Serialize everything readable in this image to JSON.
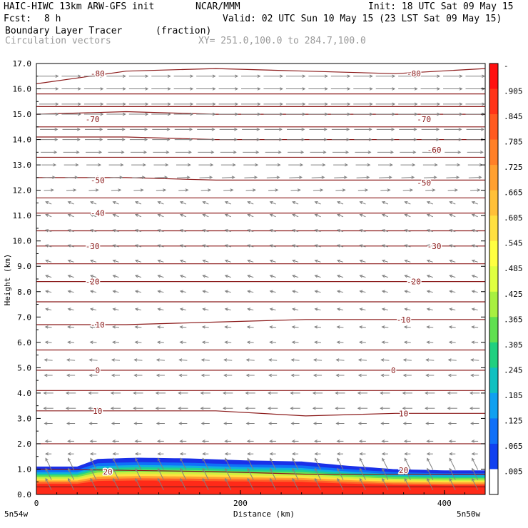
{
  "header": {
    "model": "HAIC-HIWC 13km ARW-GFS init",
    "org": "NCAR/MMM",
    "init": "Init: 18 UTC Sat 09 May 15",
    "fcst_label": "Fcst:",
    "fcst_value": "8 h",
    "valid": "Valid: 02 UTC Sun 10 May 15 (23 LST Sat 09 May 15)",
    "field_name": "Boundary Layer Tracer",
    "field_units": "(fraction)",
    "overlay_name": "Circulation vectors",
    "xsect": "XY= 251.0,100.0 to 284.7,100.0"
  },
  "chart_data": {
    "type": "heatmap",
    "xlabel": "Distance (km)",
    "ylabel": "Height (km)",
    "xlim": [
      0,
      440
    ],
    "ylim": [
      0,
      17
    ],
    "x_ticks": [
      "0",
      "200",
      "400"
    ],
    "x_tick_values": [
      0,
      200,
      400
    ],
    "x_end_labels": [
      "5n54w",
      "5n50w"
    ],
    "y_ticks": [
      "0.0",
      "1.0",
      "2.0",
      "3.0",
      "4.0",
      "5.0",
      "6.0",
      "7.0",
      "8.0",
      "9.0",
      "10.0",
      "11.0",
      "12.0",
      "13.0",
      "14.0",
      "15.0",
      "16.0",
      "17.0"
    ],
    "colorbar": {
      "labels": [
        "-",
        ".905",
        ".845",
        ".785",
        ".725",
        ".665",
        ".605",
        ".545",
        ".485",
        ".425",
        ".365",
        ".305",
        ".245",
        ".185",
        ".125",
        ".065",
        ".005"
      ],
      "colors": [
        "#ff1010",
        "#ff3418",
        "#ff5a20",
        "#ff8028",
        "#ffa030",
        "#ffc038",
        "#ffe040",
        "#ffff40",
        "#e0ff40",
        "#a8f040",
        "#60e050",
        "#20d080",
        "#10c0c0",
        "#10a0f0",
        "#1070f8",
        "#1040f0",
        "#ffffff"
      ]
    },
    "tracer_top": {
      "x": [
        0,
        40,
        60,
        100,
        150,
        200,
        260,
        300,
        350,
        400,
        440
      ],
      "height_km": [
        1.1,
        1.1,
        1.4,
        1.45,
        1.42,
        1.35,
        1.3,
        1.15,
        1.0,
        0.95,
        0.95
      ]
    },
    "temperature_contours": {
      "units": "C",
      "contours": [
        {
          "label": "-80",
          "heights_km": [
            16.2,
            16.7,
            16.8,
            16.7,
            16.6,
            16.8
          ],
          "label_pos": [
            [
              60,
              16.6
            ],
            [
              370,
              16.6
            ]
          ]
        },
        {
          "label": "-70",
          "heights_km": [
            15.0,
            15.1,
            15.0,
            15.0,
            15.0,
            15.0
          ],
          "label_pos": [
            [
              55,
              14.8
            ],
            [
              380,
              14.8
            ]
          ]
        },
        {
          "label": "-60",
          "heights_km": [
            14.1,
            14.1,
            14.0,
            14.0,
            14.0,
            14.0
          ],
          "label_pos": [
            [
              390,
              13.6
            ]
          ]
        },
        {
          "label": "-50",
          "heights_km": [
            12.5,
            12.5,
            12.4,
            12.4,
            12.4,
            12.4
          ],
          "label_pos": [
            [
              60,
              12.4
            ],
            [
              380,
              12.3
            ]
          ]
        },
        {
          "label": "-40",
          "heights_km": [
            11.1,
            11.1,
            11.1,
            11.1,
            11.1,
            11.1
          ],
          "label_pos": [
            [
              60,
              11.1
            ]
          ]
        },
        {
          "label": "-30",
          "heights_km": [
            9.8,
            9.8,
            9.8,
            9.8,
            9.8,
            9.8
          ],
          "label_pos": [
            [
              55,
              9.8
            ],
            [
              390,
              9.8
            ]
          ]
        },
        {
          "label": "-20",
          "heights_km": [
            8.4,
            8.4,
            8.4,
            8.4,
            8.4,
            8.4
          ],
          "label_pos": [
            [
              55,
              8.4
            ],
            [
              370,
              8.4
            ]
          ]
        },
        {
          "label": "-10",
          "heights_km": [
            6.7,
            6.7,
            6.8,
            6.9,
            6.9,
            6.9
          ],
          "label_pos": [
            [
              60,
              6.7
            ],
            [
              360,
              6.9
            ]
          ]
        },
        {
          "label": "0",
          "heights_km": [
            4.9,
            4.9,
            4.9,
            4.9,
            4.9,
            4.9
          ],
          "label_pos": [
            [
              60,
              4.9
            ],
            [
              350,
              4.9
            ]
          ]
        },
        {
          "label": "10",
          "heights_km": [
            3.3,
            3.3,
            3.3,
            3.1,
            3.2,
            3.2
          ],
          "label_pos": [
            [
              60,
              3.3
            ],
            [
              360,
              3.2
            ]
          ]
        },
        {
          "label": "20",
          "heights_km": [
            1.0,
            0.95,
            0.9,
            0.8,
            0.8,
            0.8
          ],
          "label_pos": [
            [
              70,
              0.9
            ],
            [
              360,
              0.95
            ]
          ]
        }
      ],
      "extra_levels_km": [
        0.3,
        2.0,
        4.1,
        5.7,
        7.6,
        9.1,
        10.4,
        11.7,
        13.3,
        14.5,
        15.3,
        15.8
      ]
    },
    "wind_vectors": {
      "rows_km": [
        16.5,
        16.0,
        15.4,
        15.0,
        14.4,
        14.0,
        13.5,
        13.0,
        12.5,
        12.0,
        11.5,
        11.0,
        10.4,
        9.8,
        9.2,
        8.6,
        8.0,
        7.3,
        6.6,
        6.0,
        5.3,
        4.7,
        4.0,
        3.4,
        2.8,
        2.1,
        1.6,
        1.2,
        0.8,
        0.4
      ],
      "u_ms": [
        12,
        12,
        12,
        12,
        11,
        11,
        10,
        9,
        8,
        6,
        -2,
        -2,
        -3,
        -3,
        -3,
        -3,
        -3,
        -3,
        -4,
        -4,
        -5,
        -5,
        -6,
        -6,
        -5,
        -4,
        -3,
        -3,
        -3,
        -3
      ],
      "w_tilt": [
        0,
        0,
        0,
        0,
        0,
        0,
        0,
        0,
        0.1,
        0.1,
        0.4,
        0.4,
        0.3,
        0.3,
        0.3,
        0.3,
        0.2,
        0.2,
        0.1,
        0.1,
        0.1,
        0,
        0,
        0,
        0,
        0,
        0,
        2,
        2,
        2
      ]
    }
  }
}
